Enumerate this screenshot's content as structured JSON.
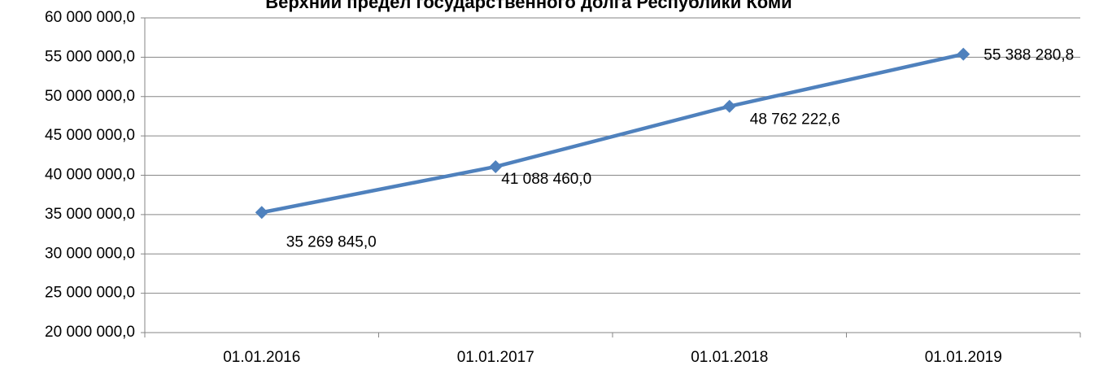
{
  "chart_data": {
    "type": "line",
    "title": "Верхний предел государственного долга Республики Коми",
    "categories": [
      "01.01.2016",
      "01.01.2017",
      "01.01.2018",
      "01.01.2019"
    ],
    "series": [
      {
        "name": "Верхний предел государственного долга",
        "color": "#4f81bd",
        "values": [
          35269845.0,
          41088460.0,
          48762222.6,
          55388280.8
        ],
        "value_labels": [
          "35 269 845,0",
          "41 088 460,0",
          "48 762 222,6",
          "55 388 280,8"
        ]
      }
    ],
    "ylim": [
      20000000,
      60000000
    ],
    "yticks": [
      {
        "value": 20000000,
        "label": "20 000 000,0"
      },
      {
        "value": 25000000,
        "label": "25 000 000,0"
      },
      {
        "value": 30000000,
        "label": "30 000 000,0"
      },
      {
        "value": 35000000,
        "label": "35 000 000,0"
      },
      {
        "value": 40000000,
        "label": "40 000 000,0"
      },
      {
        "value": 45000000,
        "label": "45 000 000,0"
      },
      {
        "value": 50000000,
        "label": "50 000 000,0"
      },
      {
        "value": 55000000,
        "label": "55 000 000,0"
      },
      {
        "value": 60000000,
        "label": "60 000 000,0"
      }
    ],
    "grid": true
  }
}
